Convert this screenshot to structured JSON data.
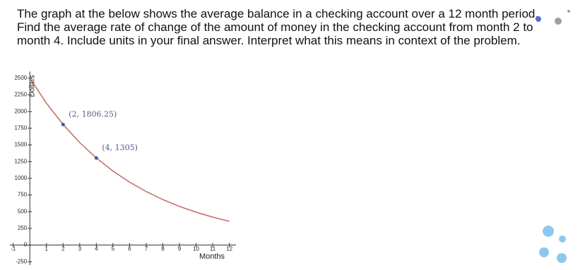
{
  "question_lines": [
    "The graph at the below shows the average balance in a checking account over a 12 month period.",
    "Find the average rate of change of the amount of money in the checking account from month 2 to",
    "month 4. Include units in your final answer. Interpret what this means in context of the problem."
  ],
  "chart_data": {
    "type": "line",
    "x_label": "Months",
    "y_label": "Dollars",
    "x": [
      0,
      1,
      2,
      3,
      4,
      5,
      6,
      7,
      8,
      9,
      10,
      11,
      12
    ],
    "series": [
      {
        "color": "#c06a5e",
        "values": [
          2500,
          2125,
          1806.25,
          1535.31,
          1305.02,
          1109.26,
          942.87,
          801.44,
          681.23,
          579.04,
          492.19,
          418.36,
          355.6
        ]
      }
    ],
    "points": [
      {
        "x": 2,
        "y": 1806.25,
        "label": "(2, 1806.25)"
      },
      {
        "x": 4,
        "y": 1305,
        "label": "(4, 1305)"
      }
    ],
    "point_color": "#3d5aa8",
    "xlim": [
      -1.2,
      12.4
    ],
    "ylim": [
      -300,
      2600
    ],
    "xticks": [
      -1,
      1,
      2,
      3,
      4,
      5,
      6,
      7,
      8,
      9,
      10,
      11,
      12
    ],
    "yticks": [
      -250,
      0,
      250,
      500,
      750,
      1000,
      1250,
      1500,
      1750,
      2000,
      2250,
      2500
    ]
  }
}
